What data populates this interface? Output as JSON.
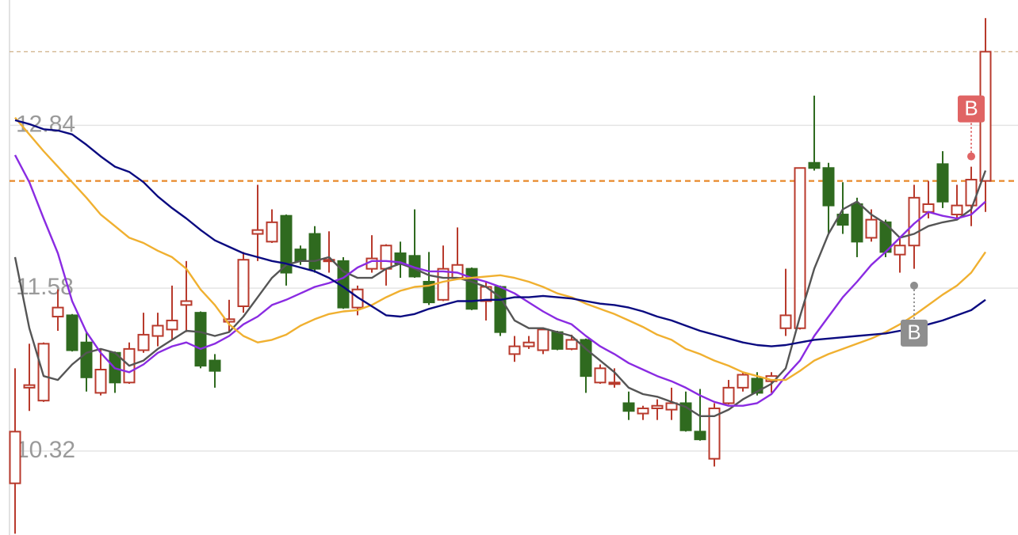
{
  "chart_data": {
    "type": "candlestick",
    "categories": [
      null,
      null,
      null,
      null,
      null,
      null,
      null,
      null,
      null,
      null,
      null,
      null,
      null,
      null,
      null,
      null,
      null,
      null,
      null,
      null,
      null,
      null,
      null,
      null,
      null,
      null,
      null,
      null,
      null,
      null,
      null,
      null,
      null,
      null,
      null,
      null,
      null,
      null,
      null,
      null,
      null,
      null,
      null,
      null,
      null,
      null,
      null,
      null,
      null,
      null,
      null,
      null,
      null,
      null,
      null,
      null,
      null,
      null,
      null,
      null,
      null,
      null,
      null,
      null,
      null,
      null,
      null,
      null,
      null
    ],
    "open": [
      10.07,
      10.81,
      10.71,
      11.36,
      11.37,
      11.16,
      10.77,
      11.08,
      10.85,
      11.1,
      11.21,
      11.26,
      11.45,
      11.39,
      11.02,
      11.32,
      11.44,
      12.0,
      11.94,
      12.14,
      11.88,
      12.0,
      11.79,
      11.79,
      11.43,
      11.73,
      11.73,
      11.85,
      11.83,
      11.63,
      11.49,
      11.66,
      11.73,
      11.48,
      11.59,
      11.07,
      11.13,
      11.1,
      11.24,
      11.11,
      11.18,
      10.85,
      10.84,
      10.69,
      10.61,
      10.65,
      10.64,
      10.69,
      10.47,
      10.26,
      10.69,
      10.81,
      10.88,
      10.86,
      11.27,
      11.27,
      12.55,
      12.51,
      12.15,
      12.23,
      11.97,
      12.09,
      11.84,
      11.91,
      12.17,
      12.54,
      12.15,
      12.22,
      12.41
    ],
    "high": [
      10.96,
      11.15,
      11.16,
      11.57,
      11.38,
      11.24,
      11.11,
      11.09,
      11.16,
      11.39,
      11.39,
      11.6,
      11.79,
      11.4,
      11.07,
      11.49,
      11.86,
      12.38,
      12.19,
      12.15,
      11.91,
      12.06,
      12.02,
      11.82,
      11.6,
      11.99,
      11.92,
      11.94,
      12.19,
      11.86,
      11.91,
      12.05,
      11.74,
      11.63,
      11.6,
      11.21,
      11.21,
      11.27,
      11.25,
      11.22,
      11.19,
      10.99,
      10.96,
      10.78,
      10.67,
      10.72,
      10.81,
      10.78,
      10.8,
      10.69,
      10.87,
      10.93,
      10.93,
      10.93,
      11.73,
      12.51,
      13.07,
      12.55,
      12.4,
      12.28,
      12.19,
      12.11,
      11.98,
      12.38,
      12.41,
      12.64,
      12.38,
      12.52,
      13.67
    ],
    "low": [
      9.68,
      10.63,
      10.7,
      11.25,
      11.09,
      10.78,
      10.75,
      10.77,
      10.84,
      11.08,
      11.13,
      11.18,
      11.24,
      10.96,
      10.81,
      11.24,
      11.39,
      11.79,
      11.93,
      11.6,
      11.76,
      11.7,
      11.7,
      11.42,
      11.37,
      11.7,
      11.6,
      11.66,
      11.66,
      11.45,
      11.48,
      11.66,
      11.41,
      11.33,
      11.21,
      11.01,
      11.11,
      11.07,
      11.1,
      11.1,
      10.77,
      10.84,
      10.81,
      10.56,
      10.56,
      10.56,
      10.56,
      10.47,
      10.4,
      10.2,
      10.68,
      10.78,
      10.75,
      10.77,
      11.21,
      11.26,
      12.49,
      12.0,
      12.0,
      11.82,
      11.94,
      11.82,
      11.7,
      11.73,
      12.12,
      12.2,
      12.11,
      12.06,
      12.17
    ],
    "close": [
      10.47,
      10.83,
      11.15,
      11.43,
      11.1,
      10.89,
      10.95,
      10.85,
      11.11,
      11.22,
      11.29,
      11.33,
      11.48,
      10.98,
      10.94,
      11.34,
      11.8,
      12.03,
      12.09,
      11.7,
      11.79,
      11.73,
      11.8,
      11.43,
      11.57,
      11.81,
      11.91,
      11.77,
      11.67,
      11.47,
      11.73,
      11.76,
      11.42,
      11.59,
      11.24,
      11.13,
      11.16,
      11.26,
      11.11,
      11.18,
      10.9,
      10.96,
      10.85,
      10.63,
      10.65,
      10.67,
      10.69,
      10.48,
      10.41,
      10.65,
      10.81,
      10.91,
      10.77,
      10.9,
      11.37,
      12.51,
      12.51,
      12.22,
      12.07,
      11.94,
      12.11,
      11.86,
      11.91,
      12.28,
      12.23,
      12.25,
      12.22,
      12.42,
      13.41
    ],
    "up_color": "#b83a2c",
    "down_color": "#2f6a1f",
    "lines": [
      {
        "color": "#555555",
        "values": [
          11.82,
          11.27,
          10.9,
          10.87,
          10.99,
          11.08,
          11.11,
          11.08,
          10.98,
          11.02,
          11.11,
          11.18,
          11.25,
          11.24,
          11.21,
          11.24,
          11.36,
          11.51,
          11.66,
          11.76,
          11.79,
          11.79,
          11.82,
          11.71,
          11.66,
          11.66,
          11.73,
          11.77,
          11.73,
          11.68,
          11.66,
          11.66,
          11.63,
          11.59,
          11.51,
          11.33,
          11.27,
          11.27,
          11.24,
          11.21,
          11.11,
          11.02,
          10.93,
          10.81,
          10.76,
          10.74,
          10.7,
          10.66,
          10.59,
          10.59,
          10.64,
          10.72,
          10.78,
          10.84,
          10.96,
          11.36,
          11.73,
          12.0,
          12.19,
          12.25,
          12.15,
          12.08,
          11.97,
          12.0,
          12.06,
          12.09,
          12.11,
          12.19,
          12.49
        ]
      },
      {
        "color": "#8a2be2",
        "values": [
          12.61,
          12.4,
          12.12,
          11.85,
          11.48,
          11.24,
          11.08,
          10.96,
          10.93,
          10.99,
          11.08,
          11.13,
          11.16,
          11.11,
          11.15,
          11.21,
          11.3,
          11.36,
          11.45,
          11.49,
          11.54,
          11.59,
          11.62,
          11.66,
          11.74,
          11.79,
          11.79,
          11.78,
          11.74,
          11.71,
          11.71,
          11.7,
          11.66,
          11.63,
          11.59,
          11.54,
          11.47,
          11.4,
          11.34,
          11.3,
          11.21,
          11.13,
          11.07,
          11.0,
          10.95,
          10.9,
          10.86,
          10.81,
          10.75,
          10.7,
          10.67,
          10.67,
          10.69,
          10.76,
          10.9,
          11.02,
          11.21,
          11.36,
          11.51,
          11.63,
          11.76,
          11.86,
          11.97,
          12.08,
          12.17,
          12.14,
          12.12,
          12.15,
          12.25
        ]
      },
      {
        "color": "#f0b030",
        "values": [
          12.9,
          12.77,
          12.64,
          12.52,
          12.4,
          12.28,
          12.15,
          12.06,
          11.97,
          11.93,
          11.87,
          11.82,
          11.73,
          11.57,
          11.45,
          11.3,
          11.21,
          11.16,
          11.18,
          11.22,
          11.29,
          11.34,
          11.38,
          11.4,
          11.41,
          11.45,
          11.51,
          11.56,
          11.59,
          11.6,
          11.63,
          11.65,
          11.66,
          11.67,
          11.68,
          11.66,
          11.63,
          11.59,
          11.54,
          11.51,
          11.46,
          11.42,
          11.38,
          11.33,
          11.28,
          11.22,
          11.18,
          11.11,
          11.07,
          11.02,
          10.98,
          10.93,
          10.9,
          10.87,
          10.87,
          10.94,
          11.02,
          11.07,
          11.11,
          11.15,
          11.19,
          11.24,
          11.3,
          11.37,
          11.45,
          11.53,
          11.6,
          11.7,
          11.86
        ]
      },
      {
        "color": "#0a0a80",
        "values": [
          12.88,
          12.85,
          12.81,
          12.8,
          12.77,
          12.69,
          12.6,
          12.52,
          12.48,
          12.4,
          12.29,
          12.2,
          12.12,
          12.03,
          11.95,
          11.9,
          11.85,
          11.82,
          11.79,
          11.77,
          11.74,
          11.71,
          11.66,
          11.59,
          11.51,
          11.44,
          11.37,
          11.36,
          11.38,
          11.42,
          11.45,
          11.48,
          11.48,
          11.49,
          11.49,
          11.51,
          11.51,
          11.52,
          11.51,
          11.5,
          11.48,
          11.46,
          11.45,
          11.43,
          11.4,
          11.36,
          11.33,
          11.29,
          11.25,
          11.22,
          11.19,
          11.16,
          11.14,
          11.13,
          11.14,
          11.16,
          11.18,
          11.19,
          11.2,
          11.21,
          11.22,
          11.23,
          11.25,
          11.27,
          11.3,
          11.33,
          11.37,
          11.41,
          11.49
        ]
      }
    ],
    "hlines": [
      {
        "value": 13.41,
        "color": "#c9a87a"
      },
      {
        "value": 12.41,
        "color": "#e8892a"
      }
    ],
    "markers": [
      {
        "label": "B",
        "index": 67,
        "value": 12.6,
        "color": "#e06464",
        "position": "above"
      },
      {
        "label": "B",
        "index": 63,
        "value": 11.6,
        "color": "#8e8e8e",
        "position": "below"
      }
    ],
    "ylim": [
      9.67,
      13.81
    ],
    "yticks": [
      10.32,
      11.58,
      12.84
    ],
    "grid": true
  }
}
